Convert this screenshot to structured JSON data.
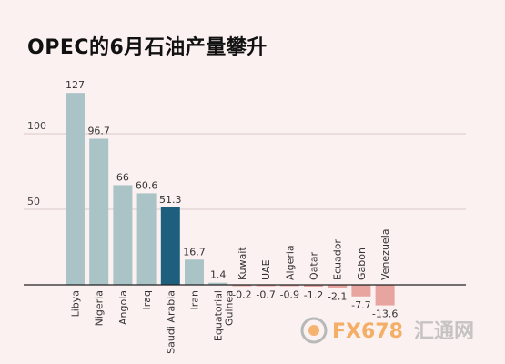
{
  "title": "OPEC的6月石油产量攀升",
  "watermark": {
    "text1": "FX678",
    "text2": "汇通网"
  },
  "colors": {
    "bar_default": "#a9c3c7",
    "bar_highlight": "#1f5f7e",
    "bar_negative": "#e8a5a0",
    "gridline": "#dcc9c9",
    "axis": "#222222",
    "watermark_orange": "#f08a1c",
    "watermark_gray": "#b8b8b8"
  },
  "chart_data": {
    "type": "bar",
    "categories": [
      "Libya",
      "Nigeria",
      "Angola",
      "Iraq",
      "Saudi Arabia",
      "Iran",
      "Equatorial Guinea",
      "Kuwait",
      "UAE",
      "Algeria",
      "Qatar",
      "Ecuador",
      "Gabon",
      "Venezuela"
    ],
    "values": [
      127,
      96.7,
      66,
      60.6,
      51.3,
      16.7,
      1.4,
      -0.2,
      -0.7,
      -0.9,
      -1.2,
      -2.1,
      -7.7,
      -13.6
    ],
    "value_labels": [
      "127",
      "96.7",
      "66",
      "60.6",
      "51.3",
      "16.7",
      "1.4",
      "-0.2",
      "-0.7",
      "-0.9",
      "-1.2",
      "-2.1",
      "-7.7",
      "-13.6"
    ],
    "highlight_index": 4,
    "yticks": [
      50,
      100
    ],
    "ylim": [
      -20,
      135
    ],
    "grid": true,
    "title": "OPEC的6月石油产量攀升",
    "xlabel": "",
    "ylabel": ""
  }
}
